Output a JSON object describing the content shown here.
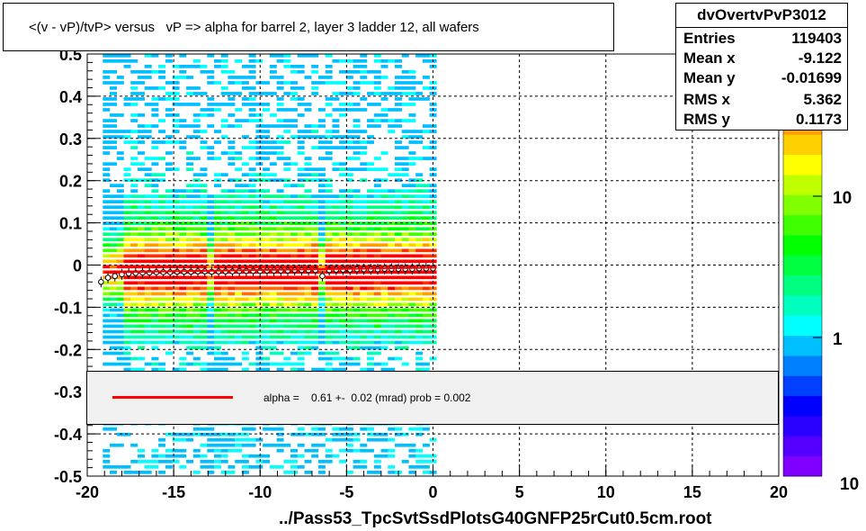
{
  "title": "<(v - vP)/tvP> versus   vP => alpha for barrel 2, layer 3 ladder 12, all wafers",
  "stats": {
    "name": "dvOvertvPvP3012",
    "rows": [
      {
        "key": "Entries",
        "value": "119403"
      },
      {
        "key": "Mean x",
        "value": "-9.122"
      },
      {
        "key": "Mean y",
        "value": "-0.01699"
      },
      {
        "key": "RMS x",
        "value": "5.362"
      },
      {
        "key": "RMS y",
        "value": "0.1173"
      }
    ]
  },
  "legend": {
    "line_color": "#ff0000",
    "text": "alpha =    0.61 +-  0.02 (mrad) prob = 0.002"
  },
  "xlabel": "../Pass53_TpcSvtSsdPlotsG40GNFP25rCut0.5cm.root",
  "chart_data": {
    "type": "heatmap",
    "title": "<(v - vP)/tvP> versus   vP => alpha for barrel 2, layer 3 ladder 12, all wafers",
    "xlabel": "../Pass53_TpcSvtSsdPlotsG40GNFP25rCut0.5cm.root",
    "ylabel": "",
    "xlim": [
      -20,
      20
    ],
    "ylim": [
      -0.5,
      0.5
    ],
    "x_ticks": [
      "-20",
      "-15",
      "-10",
      "-5",
      "0",
      "5",
      "10",
      "15",
      "20"
    ],
    "y_ticks": [
      "-0.5",
      "-0.4",
      "-0.3",
      "-0.2",
      "-0.1",
      "0",
      "0.1",
      "0.2",
      "0.3",
      "0.4",
      "0.5"
    ],
    "z_scale": "log",
    "z_ticks": [
      "1",
      "10"
    ],
    "z_tick_last": "10",
    "grid": true,
    "data_x_range": [
      -19.1,
      0.2
    ],
    "gaps_x": [
      -12.8,
      -6.4
    ],
    "band_center_y": -0.015,
    "profile": {
      "x": [
        -19.2,
        -18.8,
        -18.4,
        -18.0,
        -17.6,
        -17.2,
        -16.8,
        -16.4,
        -16.0,
        -15.6,
        -15.2,
        -14.8,
        -14.4,
        -14.0,
        -13.6,
        -13.2,
        -12.8,
        -12.4,
        -12.0,
        -11.6,
        -11.2,
        -10.8,
        -10.4,
        -10.0,
        -9.6,
        -9.2,
        -8.8,
        -8.4,
        -8.0,
        -7.6,
        -7.2,
        -6.8,
        -6.4,
        -6.0,
        -5.6,
        -5.2,
        -4.8,
        -4.4,
        -4.0,
        -3.6,
        -3.2,
        -2.8,
        -2.4,
        -2.0,
        -1.6,
        -1.2,
        -0.8,
        -0.4,
        0.0
      ],
      "y": [
        -0.04,
        -0.03,
        -0.026,
        -0.022,
        -0.02,
        -0.019,
        -0.018,
        -0.018,
        -0.017,
        -0.017,
        -0.017,
        -0.016,
        -0.016,
        -0.016,
        -0.015,
        -0.015,
        -0.016,
        -0.015,
        -0.015,
        -0.015,
        -0.014,
        -0.014,
        -0.014,
        -0.014,
        -0.013,
        -0.013,
        -0.013,
        -0.013,
        -0.012,
        -0.012,
        -0.012,
        -0.012,
        -0.026,
        -0.012,
        -0.011,
        -0.011,
        -0.011,
        -0.01,
        -0.01,
        -0.01,
        -0.01,
        -0.009,
        -0.009,
        -0.009,
        -0.009,
        -0.009,
        -0.008,
        -0.008,
        -0.008
      ]
    },
    "fit": {
      "x": [
        -19.0,
        0.2
      ],
      "y": [
        -0.017,
        -0.006
      ],
      "color": "#ff0000"
    }
  }
}
